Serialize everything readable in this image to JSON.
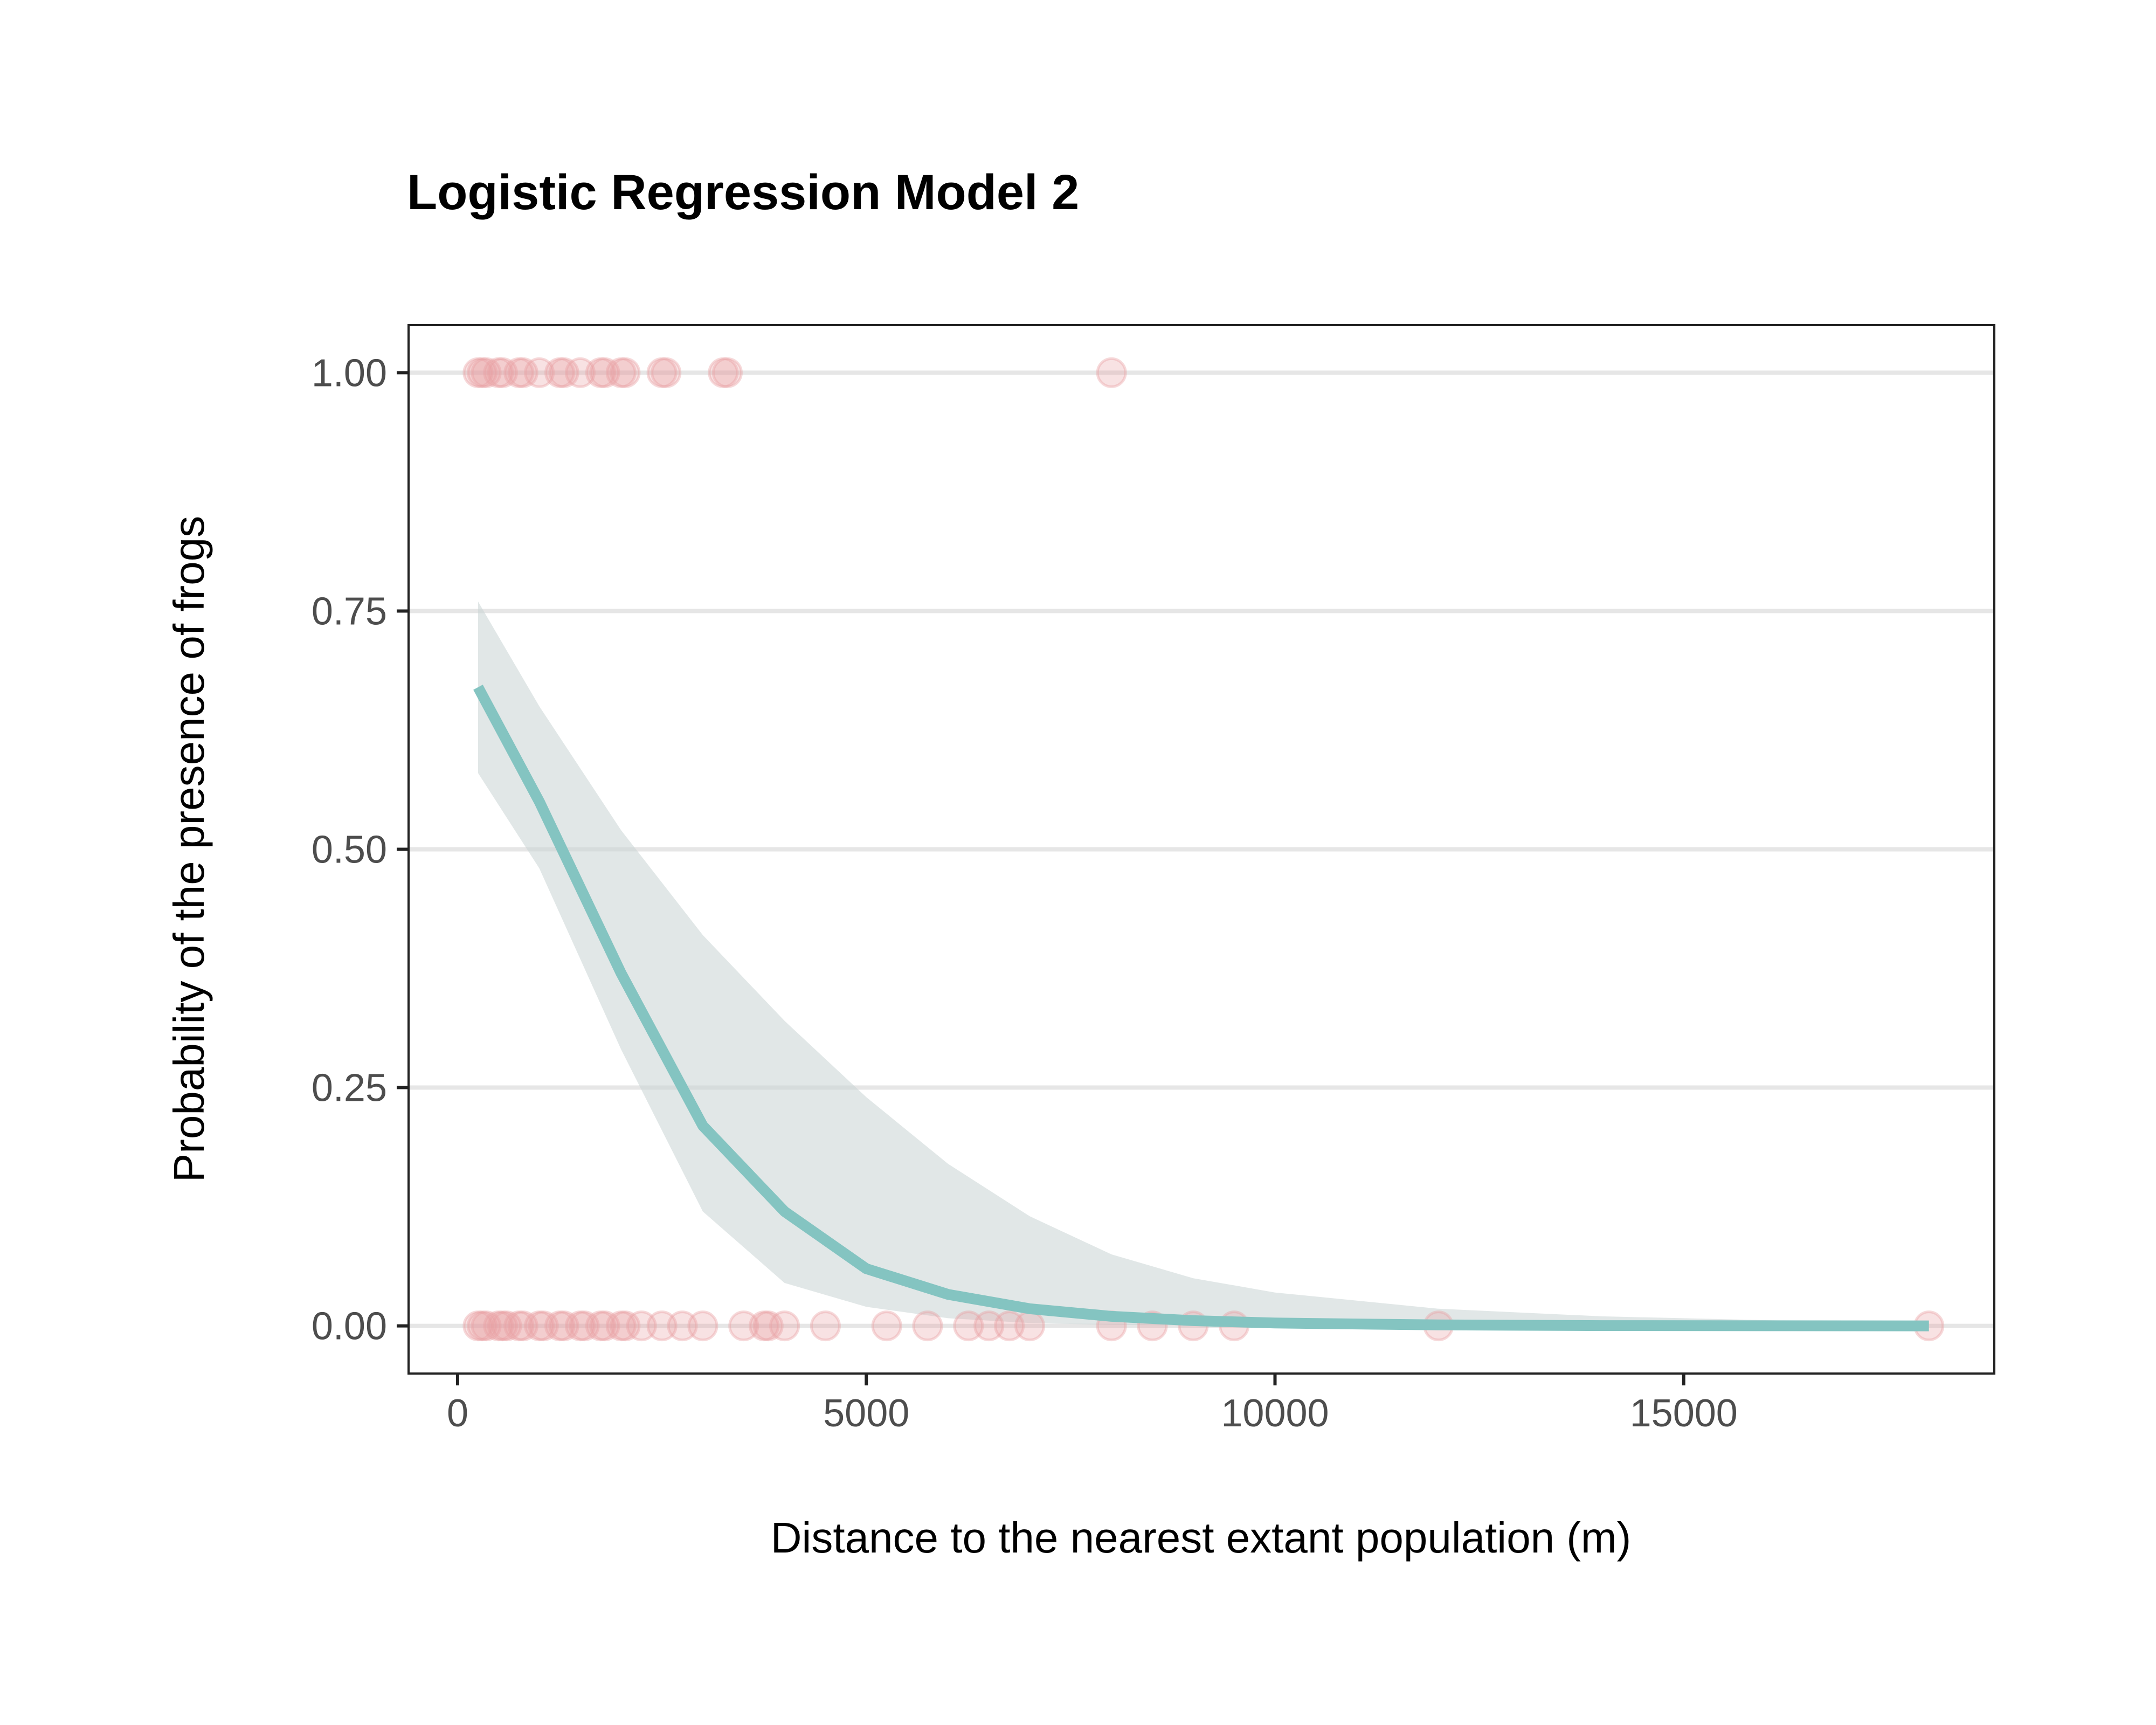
{
  "chart_data": {
    "type": "scatter",
    "title": "Logistic Regression Model 2",
    "xlabel": "Distance to the nearest extant population (m)",
    "ylabel": "Probability of the presence of frogs",
    "xlim": [
      -600,
      18800
    ],
    "ylim": [
      -0.05,
      1.05
    ],
    "x_ticks": [
      0,
      5000,
      10000,
      15000
    ],
    "x_tick_labels": [
      "0",
      "5000",
      "10000",
      "15000"
    ],
    "y_ticks": [
      0,
      0.25,
      0.5,
      0.75,
      1
    ],
    "y_tick_labels": [
      "0.00",
      "0.25",
      "0.50",
      "0.75",
      "1.00"
    ],
    "grid": "horizontal major lines only",
    "legend": "none",
    "colors": {
      "points": "#e8a0a3",
      "fit_line": "#84c4c1",
      "confidence_band": "#c8d3d3",
      "grid": "#e6e6e6",
      "axis": "#222222"
    },
    "point_opacity": 0.3,
    "points_presence_1": [
      250,
      300,
      350,
      500,
      550,
      750,
      800,
      1000,
      1250,
      1300,
      1500,
      1750,
      1800,
      2000,
      2050,
      2500,
      2550,
      3250,
      3300,
      8000
    ],
    "points_presence_0": [
      250,
      300,
      350,
      500,
      550,
      600,
      750,
      800,
      1000,
      1050,
      1250,
      1300,
      1500,
      1550,
      1750,
      1800,
      2000,
      2050,
      2250,
      2500,
      2750,
      3000,
      3500,
      3750,
      3800,
      4000,
      4500,
      5250,
      5750,
      6250,
      6500,
      6750,
      7000,
      8000,
      8500,
      9000,
      9500,
      12000,
      18000
    ],
    "fit_series": {
      "name": "",
      "x": [
        250,
        1000,
        2000,
        3000,
        4000,
        5000,
        6000,
        7000,
        8000,
        9000,
        10000,
        12000,
        14000,
        16000,
        18000
      ],
      "y": [
        0.67,
        0.55,
        0.37,
        0.21,
        0.12,
        0.06,
        0.033,
        0.018,
        0.01,
        0.0055,
        0.003,
        0.001,
        0.0003,
        0.0001,
        0.0
      ],
      "lower": [
        0.58,
        0.48,
        0.29,
        0.12,
        0.045,
        0.02,
        0.008,
        0.003,
        0.001,
        0.0004,
        0.0001,
        0.0,
        0.0,
        0.0,
        0.0
      ],
      "upper": [
        0.76,
        0.65,
        0.52,
        0.41,
        0.32,
        0.24,
        0.17,
        0.115,
        0.075,
        0.05,
        0.035,
        0.018,
        0.01,
        0.006,
        0.003
      ]
    }
  }
}
